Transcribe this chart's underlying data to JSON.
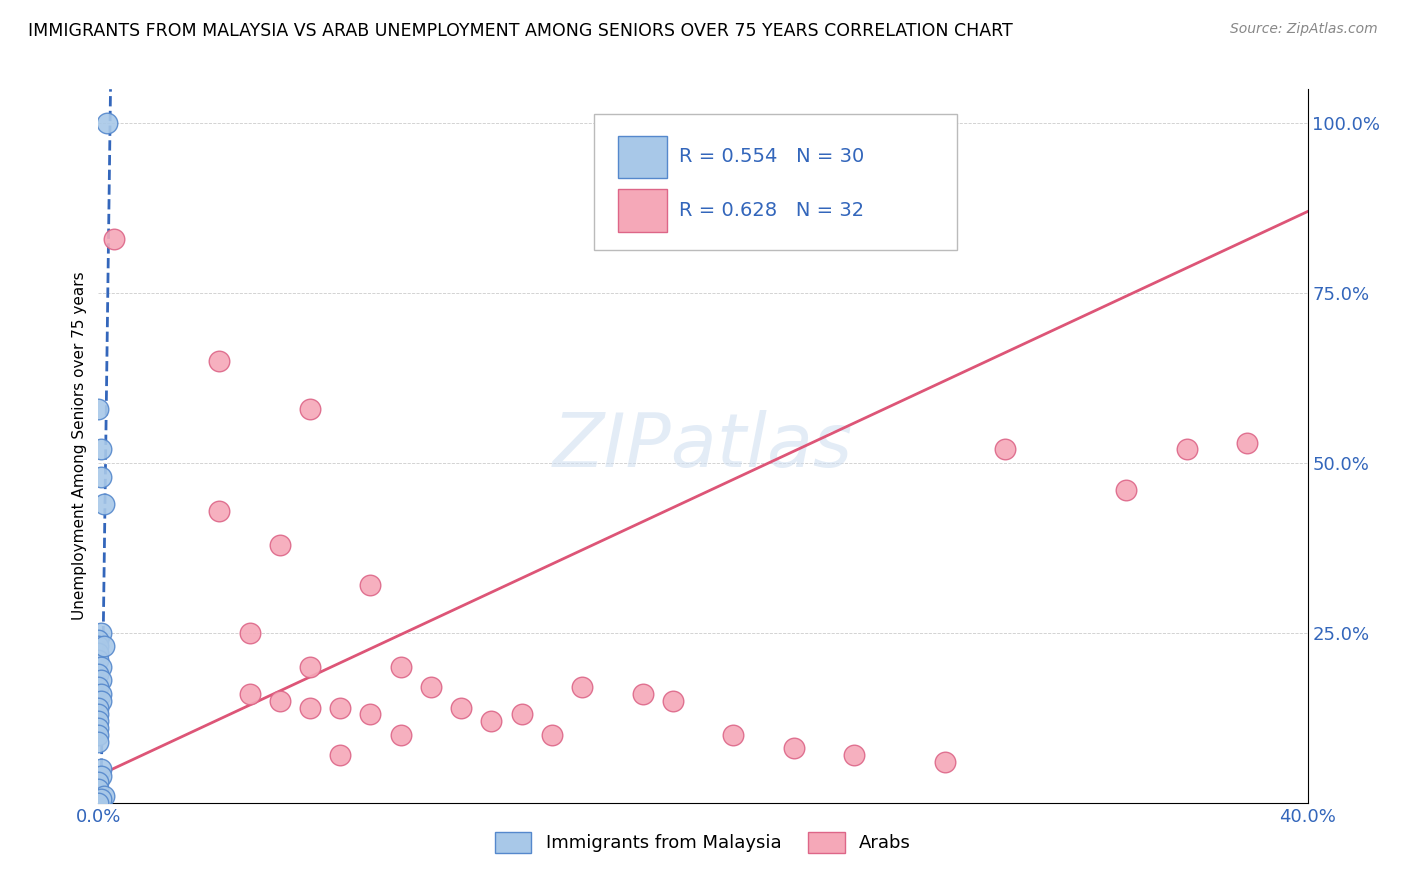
{
  "title": "IMMIGRANTS FROM MALAYSIA VS ARAB UNEMPLOYMENT AMONG SENIORS OVER 75 YEARS CORRELATION CHART",
  "source": "Source: ZipAtlas.com",
  "ylabel": "Unemployment Among Seniors over 75 years",
  "xlim": [
    0.0,
    0.4
  ],
  "ylim": [
    0.0,
    1.05
  ],
  "x_ticks": [
    0.0,
    0.08,
    0.16,
    0.24,
    0.32,
    0.4
  ],
  "x_tick_labels": [
    "0.0%",
    "",
    "",
    "",
    "",
    "40.0%"
  ],
  "y_ticks_right": [
    0.0,
    0.25,
    0.5,
    0.75,
    1.0
  ],
  "y_tick_labels_right": [
    "",
    "25.0%",
    "50.0%",
    "75.0%",
    "100.0%"
  ],
  "malaysia_color": "#a8c8e8",
  "malaysia_edge_color": "#5588cc",
  "arab_color": "#f5a8b8",
  "arab_edge_color": "#dd6688",
  "malaysia_R": 0.554,
  "malaysia_N": 30,
  "arab_R": 0.628,
  "arab_N": 32,
  "malaysia_line_color": "#3366bb",
  "arab_line_color": "#dd5577",
  "watermark": "ZIPatlas",
  "malaysia_scatter_x": [
    0.003,
    0.0,
    0.001,
    0.001,
    0.002,
    0.001,
    0.0,
    0.0,
    0.0,
    0.0,
    0.001,
    0.0,
    0.001,
    0.0,
    0.001,
    0.001,
    0.0,
    0.0,
    0.002,
    0.0,
    0.0,
    0.0,
    0.0,
    0.001,
    0.001,
    0.0,
    0.0,
    0.002,
    0.001,
    0.0
  ],
  "malaysia_scatter_y": [
    1.0,
    0.58,
    0.52,
    0.48,
    0.44,
    0.25,
    0.24,
    0.23,
    0.22,
    0.21,
    0.2,
    0.19,
    0.18,
    0.17,
    0.16,
    0.15,
    0.14,
    0.13,
    0.23,
    0.12,
    0.11,
    0.1,
    0.09,
    0.05,
    0.04,
    0.03,
    0.02,
    0.01,
    0.005,
    0.0
  ],
  "arab_scatter_x": [
    0.005,
    0.04,
    0.07,
    0.04,
    0.06,
    0.09,
    0.05,
    0.07,
    0.05,
    0.06,
    0.07,
    0.08,
    0.09,
    0.1,
    0.1,
    0.11,
    0.12,
    0.13,
    0.14,
    0.15,
    0.16,
    0.18,
    0.19,
    0.21,
    0.23,
    0.25,
    0.28,
    0.3,
    0.34,
    0.36,
    0.38,
    0.08
  ],
  "arab_scatter_y": [
    0.83,
    0.65,
    0.58,
    0.43,
    0.38,
    0.32,
    0.25,
    0.2,
    0.16,
    0.15,
    0.14,
    0.14,
    0.13,
    0.1,
    0.2,
    0.17,
    0.14,
    0.12,
    0.13,
    0.1,
    0.17,
    0.16,
    0.15,
    0.1,
    0.08,
    0.07,
    0.06,
    0.52,
    0.46,
    0.52,
    0.53,
    0.07
  ]
}
